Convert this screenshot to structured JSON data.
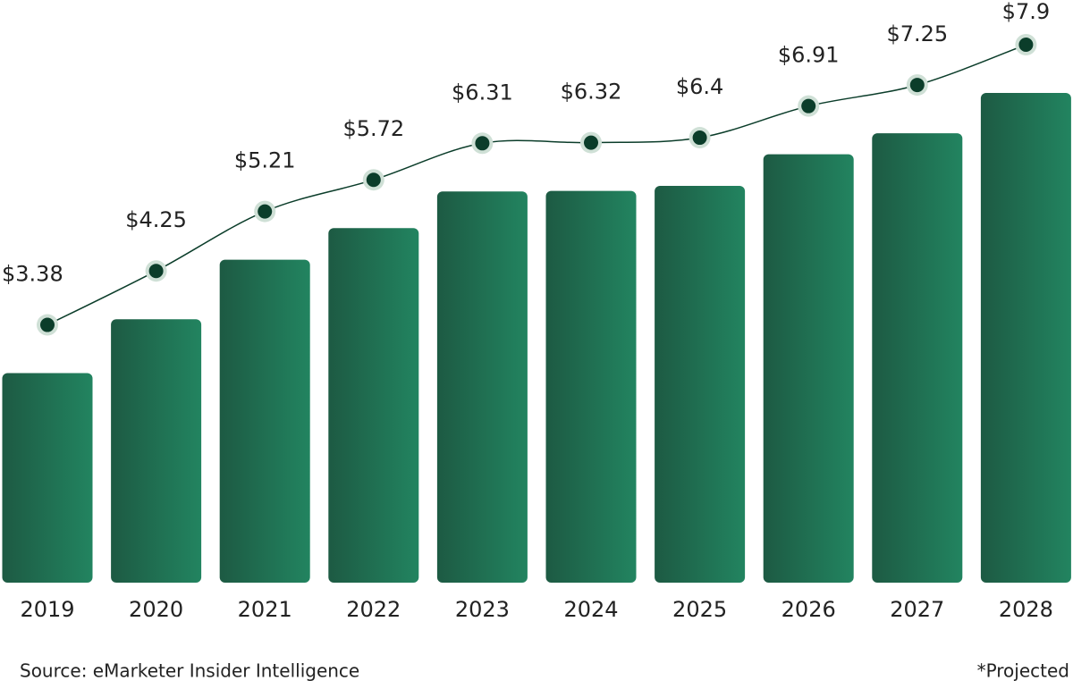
{
  "chart_data": {
    "type": "bar-line",
    "categories": [
      "2019",
      "2020",
      "2021",
      "2022",
      "2023",
      "2024",
      "2025",
      "2026",
      "2027",
      "2028"
    ],
    "values": [
      3.38,
      4.25,
      5.21,
      5.72,
      6.31,
      6.32,
      6.4,
      6.91,
      7.25,
      7.9
    ],
    "value_labels": [
      "$3.38",
      "$4.25",
      "$5.21",
      "$5.72",
      "$6.31",
      "$6.32",
      "$6.4",
      "$6.91",
      "$7.25",
      "$7.9"
    ],
    "bar_color": "#217a58",
    "line_color": "#0b3d2a",
    "source": "Source: eMarketer Insider Intelligence",
    "note": "*Projected"
  }
}
